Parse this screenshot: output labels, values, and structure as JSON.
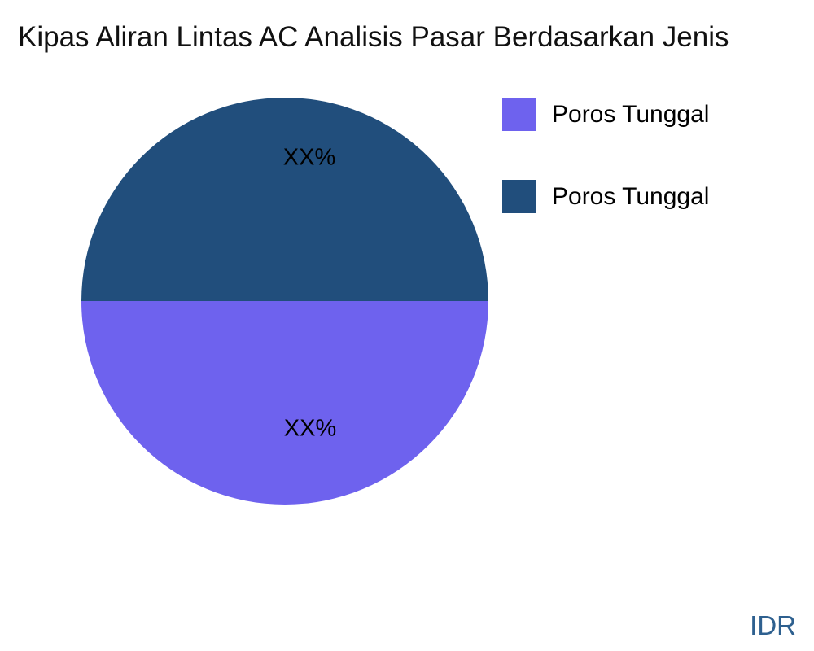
{
  "title": "Kipas Aliran Lintas AC Analisis Pasar Berdasarkan Jenis",
  "pie": {
    "top_value_label": "XX%",
    "bottom_value_label": "XX%"
  },
  "legend": {
    "items": [
      {
        "label": "Poros Tunggal",
        "color": "#6E62EE"
      },
      {
        "label": "Poros Tunggal",
        "color": "#214E7C"
      }
    ]
  },
  "footer": {
    "currency": "IDR"
  },
  "colors": {
    "slice-purple": "#6E62EE",
    "slice-navy": "#214E7C",
    "title-text": "#111111",
    "label-text": "#000000",
    "currency-text": "#2E608F",
    "background": "#FFFFFF"
  },
  "chart_data": {
    "type": "pie",
    "title": "Kipas Aliran Lintas AC Analisis Pasar Berdasarkan Jenis",
    "labels": [
      "Poros Tunggal",
      "Poros Tunggal"
    ],
    "values_pct": [
      50,
      50
    ],
    "value_labels": [
      "XX%",
      "XX%"
    ],
    "colors": [
      "#6E62EE",
      "#214E7C"
    ],
    "slice_positions": [
      "bottom half",
      "top half"
    ],
    "legend_position": "upper right",
    "currency_note": "IDR"
  }
}
